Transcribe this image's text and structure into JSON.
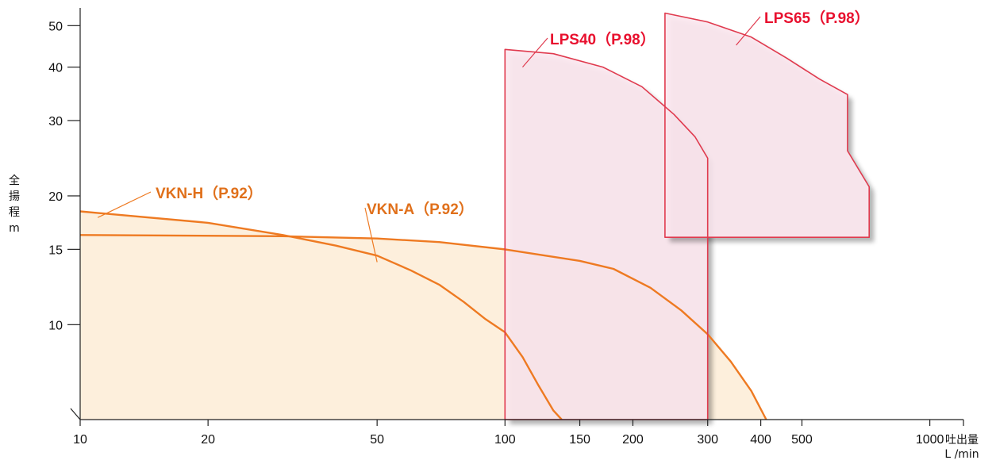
{
  "chart_data": {
    "type": "area",
    "xscale": "log",
    "yscale": "log",
    "xlim": [
      10,
      1200
    ],
    "ylim": [
      6,
      55
    ],
    "x_ticks": [
      10,
      20,
      50,
      100,
      150,
      200,
      300,
      400,
      500,
      1000
    ],
    "x_tick_labels": [
      "10",
      "20",
      "50",
      "100",
      "150",
      "200",
      "300",
      "400",
      "500",
      "1000"
    ],
    "y_ticks": [
      10,
      15,
      20,
      30,
      40,
      50
    ],
    "y_tick_labels": [
      "10",
      "15",
      "20",
      "30",
      "40",
      "50"
    ],
    "xlabel": "吐出量",
    "xunit": "L /min",
    "ylabel": [
      "全",
      "揚",
      "程",
      "m"
    ],
    "grid": false,
    "colors": {
      "orange_line": "#ee7a22",
      "orange_fill": "#fdefdc",
      "orange_text": "#e0701b",
      "red_line": "#e03a4e",
      "red_fill": "#fbe6ef",
      "red_text": "#e8102e",
      "shadow": "#c8c8c8"
    },
    "series": [
      {
        "name": "VKN-H（P.92）",
        "color_key": "orange",
        "points": [
          [
            10,
            18.4
          ],
          [
            20,
            17.3
          ],
          [
            30,
            16.2
          ],
          [
            40,
            15.3
          ],
          [
            50,
            14.5
          ],
          [
            60,
            13.4
          ],
          [
            70,
            12.4
          ],
          [
            80,
            11.3
          ],
          [
            90,
            10.3
          ],
          [
            100,
            9.6
          ],
          [
            110,
            8.4
          ],
          [
            120,
            7.2
          ],
          [
            130,
            6.3
          ],
          [
            136,
            6
          ]
        ]
      },
      {
        "name": "VKN-A（P.92）",
        "color_key": "orange",
        "points": [
          [
            10,
            16.2
          ],
          [
            30,
            16.1
          ],
          [
            50,
            15.9
          ],
          [
            70,
            15.6
          ],
          [
            100,
            15.0
          ],
          [
            150,
            14.1
          ],
          [
            180,
            13.5
          ],
          [
            220,
            12.2
          ],
          [
            260,
            10.8
          ],
          [
            300,
            9.5
          ],
          [
            340,
            8.2
          ],
          [
            380,
            7.0
          ],
          [
            412,
            6
          ]
        ]
      },
      {
        "name": "LPS40（P.98）",
        "color_key": "red",
        "points": [
          [
            100,
            6
          ],
          [
            100,
            44.0
          ],
          [
            130,
            43.0
          ],
          [
            170,
            40.0
          ],
          [
            210,
            36.0
          ],
          [
            250,
            31.0
          ],
          [
            280,
            27.5
          ],
          [
            300,
            24.5
          ],
          [
            300,
            6
          ]
        ]
      },
      {
        "name": "LPS65（P.98）",
        "color_key": "red",
        "points": [
          [
            238,
            16.0
          ],
          [
            238,
            53.5
          ],
          [
            300,
            51.0
          ],
          [
            380,
            47.0
          ],
          [
            460,
            42.0
          ],
          [
            550,
            37.5
          ],
          [
            640,
            34.5
          ],
          [
            640,
            25.5
          ],
          [
            720,
            21.0
          ],
          [
            720,
            16.0
          ]
        ]
      }
    ],
    "annotations": [
      {
        "text": "VKN-H（P.92）",
        "series": 0,
        "anchor": [
          11,
          17.8
        ]
      },
      {
        "text": "VKN-A（P.92）",
        "series": 1,
        "anchor": [
          50,
          14.0
        ]
      },
      {
        "text": "LPS40（P.98）",
        "series": 2,
        "anchor": [
          110,
          40.0
        ]
      },
      {
        "text": "LPS65（P.98）",
        "series": 3,
        "anchor": [
          350,
          45.0
        ]
      }
    ]
  }
}
